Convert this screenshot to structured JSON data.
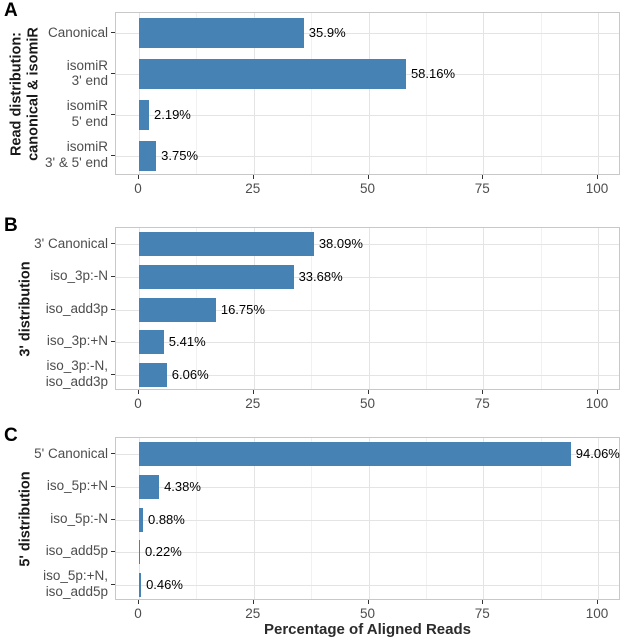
{
  "figure_meta": {
    "xlabel": "Percentage of Aligned Reads"
  },
  "style": {
    "bar_color": "#4682B4",
    "grid_major_color": "#e4e4e4",
    "grid_minor_color": "#f1f1f1",
    "panel_border_color": "#c8c8c8",
    "tick_mark_color": "#333333",
    "axis_text_color": "#4d4d4d",
    "value_label_color": "#000000",
    "title_color": "#1a1a1a"
  },
  "chart_data": [
    {
      "type": "bar",
      "orientation": "horizontal",
      "panel_letter": "A",
      "ylabel": "Read distribution:\ncanonical & isomiR",
      "categories": [
        "Canonical",
        "isomiR\n3' end",
        "isomiR\n5' end",
        "isomiR\n3' & 5' end"
      ],
      "values": [
        35.9,
        58.16,
        2.19,
        3.75
      ],
      "value_labels": [
        "35.9%",
        "58.16%",
        "2.19%",
        "3.75%"
      ],
      "xlim": [
        0,
        100
      ],
      "x_ticks": [
        0,
        25,
        50,
        75,
        100
      ],
      "x_minor_ticks": [
        12.5,
        37.5,
        62.5,
        87.5
      ],
      "grid": true,
      "legend": "none"
    },
    {
      "type": "bar",
      "orientation": "horizontal",
      "panel_letter": "B",
      "ylabel": "3' distribution",
      "categories": [
        "3' Canonical",
        "iso_3p:-N",
        "iso_add3p",
        "iso_3p:+N",
        "iso_3p:-N,\niso_add3p"
      ],
      "values": [
        38.09,
        33.68,
        16.75,
        5.41,
        6.06
      ],
      "value_labels": [
        "38.09%",
        "33.68%",
        "16.75%",
        "5.41%",
        "6.06%"
      ],
      "xlim": [
        0,
        100
      ],
      "x_ticks": [
        0,
        25,
        50,
        75,
        100
      ],
      "x_minor_ticks": [
        12.5,
        37.5,
        62.5,
        87.5
      ],
      "grid": true,
      "legend": "none"
    },
    {
      "type": "bar",
      "orientation": "horizontal",
      "panel_letter": "C",
      "ylabel": "5' distribution",
      "categories": [
        "5' Canonical",
        "iso_5p:+N",
        "iso_5p:-N",
        "iso_add5p",
        "iso_5p:+N,\niso_add5p"
      ],
      "values": [
        94.06,
        4.38,
        0.88,
        0.22,
        0.46
      ],
      "value_labels": [
        "94.06%",
        "4.38%",
        "0.88%",
        "0.22%",
        "0.46%"
      ],
      "xlim": [
        0,
        100
      ],
      "x_ticks": [
        0,
        25,
        50,
        75,
        100
      ],
      "x_minor_ticks": [
        12.5,
        37.5,
        62.5,
        87.5
      ],
      "grid": true,
      "legend": "none"
    }
  ]
}
